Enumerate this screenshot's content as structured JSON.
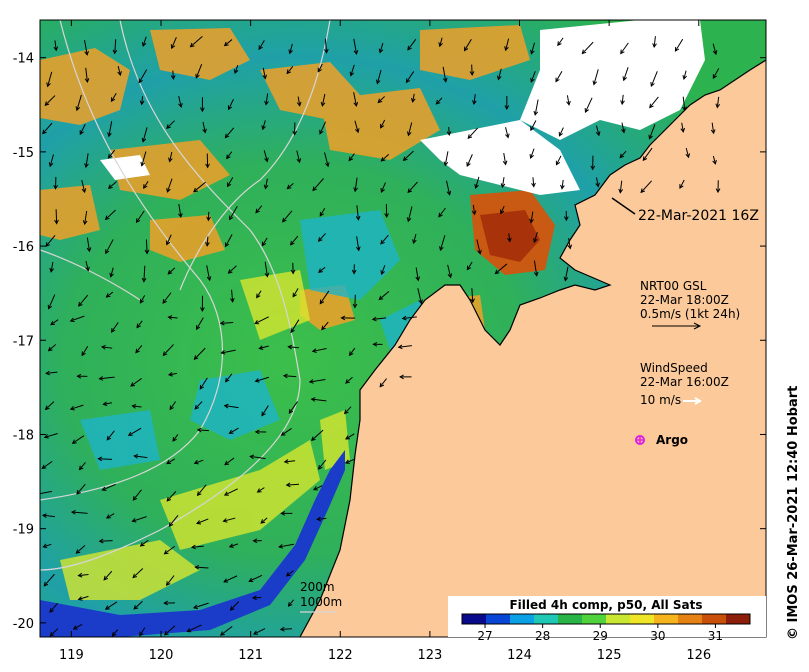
{
  "map": {
    "lon_ticks": [
      "119",
      "120",
      "121",
      "122",
      "123",
      "124",
      "125",
      "126"
    ],
    "lat_ticks": [
      "-14",
      "-15",
      "-16",
      "-17",
      "-18",
      "-19",
      "-20"
    ],
    "lon_range": [
      118.65,
      126.75
    ],
    "lat_range": [
      -13.6,
      -20.15
    ],
    "colors": {
      "land": "#fbc99a",
      "cloud": "#ffffff",
      "frame": "#000000",
      "contour": "#d6d6d6"
    }
  },
  "labels": {
    "time_stamp": "22-Mar-2021 16Z",
    "current_source": "NRT00 GSL",
    "current_time": "22-Mar 18:00Z",
    "current_scale": "0.5m/s (1kt 24h)",
    "wind_title": "WindSpeed",
    "wind_time": "22-Mar 16:00Z",
    "wind_scale": "10 m/s",
    "argo": "Argo",
    "depth_1": "200m",
    "depth_2": "1000m",
    "credit": "© IMOS 26-Mar-2021 12:40 Hobart"
  },
  "colorbar": {
    "title": "Filled 4h comp, p50, All Sats",
    "min": 26.6,
    "max": 31.6,
    "ticks": [
      "27",
      "28",
      "29",
      "30",
      "31"
    ],
    "tick_values": [
      27,
      28,
      29,
      30,
      31
    ],
    "colors": [
      "#0a0a8c",
      "#0a46d6",
      "#0aa0e6",
      "#1ec8b4",
      "#28b446",
      "#50d23c",
      "#c8e632",
      "#f0e628",
      "#f5b41e",
      "#e68214",
      "#c8500a",
      "#8c1e0a"
    ]
  }
}
